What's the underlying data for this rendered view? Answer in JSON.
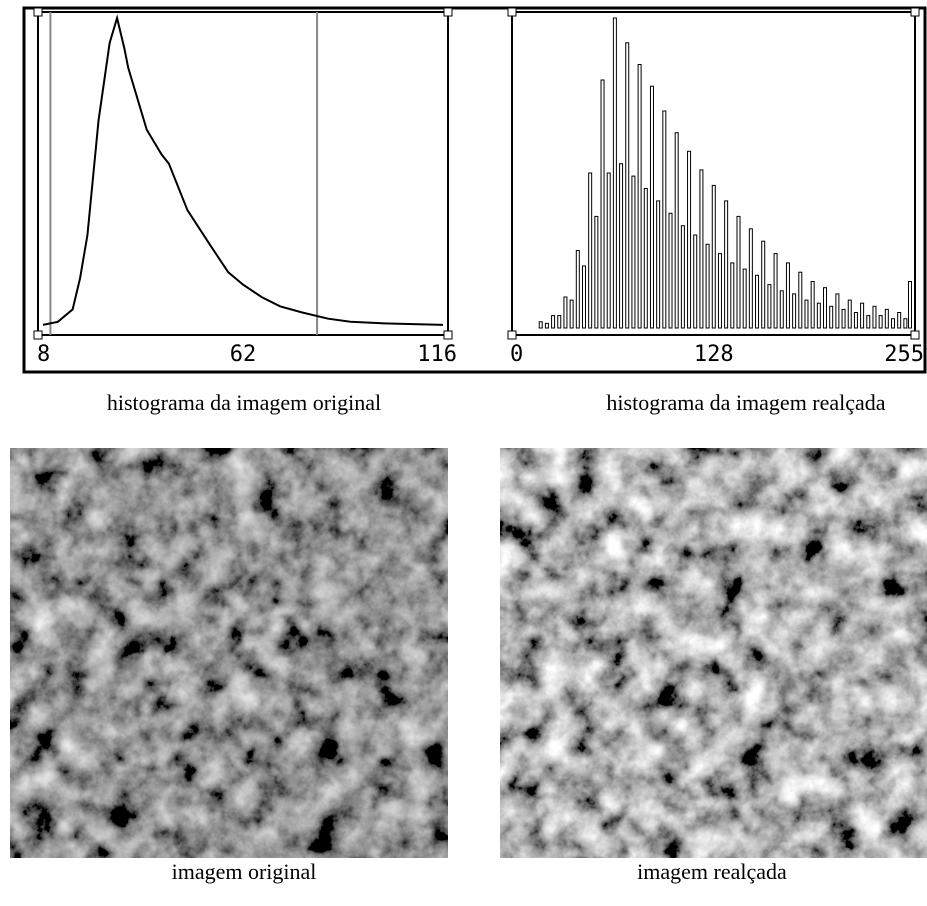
{
  "chart_data": [
    {
      "type": "line",
      "caption": "histograma da imagem original",
      "color": "#000000",
      "x": [
        8,
        12,
        16,
        18,
        20,
        23,
        26,
        28,
        30,
        31,
        34,
        36,
        40,
        42,
        47,
        53,
        58,
        62,
        67,
        72,
        78,
        85,
        91,
        100,
        116
      ],
      "values": [
        1,
        2,
        6,
        16,
        30,
        67,
        92,
        100,
        90,
        84,
        72,
        64,
        56,
        53,
        38,
        27,
        18,
        14,
        10,
        7,
        5,
        3,
        2,
        1.5,
        1
      ],
      "xlim": [
        8,
        116
      ],
      "ylim": [
        0,
        100
      ],
      "xticks": [
        8,
        62,
        116
      ],
      "vlines": [
        10,
        82
      ],
      "vline_color": "#888888"
    },
    {
      "type": "bar",
      "caption": "histograma da imagem realçada",
      "color": "#000000",
      "x": [
        16,
        20,
        24,
        28,
        32,
        36,
        40,
        44,
        48,
        52,
        56,
        60,
        64,
        68,
        72,
        76,
        80,
        84,
        88,
        92,
        96,
        100,
        104,
        108,
        112,
        116,
        120,
        124,
        128,
        132,
        136,
        140,
        144,
        148,
        152,
        156,
        160,
        164,
        168,
        172,
        176,
        180,
        184,
        188,
        192,
        196,
        200,
        204,
        208,
        212,
        216,
        220,
        224,
        228,
        232,
        236,
        240,
        244,
        248,
        252,
        255
      ],
      "values": [
        2,
        1.5,
        4,
        4,
        10,
        9,
        25,
        20,
        50,
        36,
        80,
        50,
        100,
        53,
        92,
        49,
        85,
        45,
        78,
        41,
        70,
        37,
        63,
        33,
        57,
        30,
        51,
        27,
        46,
        24,
        41,
        21,
        36,
        19,
        32,
        17,
        28,
        14,
        24,
        12,
        21,
        11,
        18,
        9,
        15,
        8,
        13,
        7,
        11,
        6,
        9,
        5,
        8,
        4,
        7,
        4,
        6,
        3,
        5,
        3,
        15
      ],
      "xlim": [
        0,
        255
      ],
      "ylim": [
        0,
        100
      ],
      "xticks": [
        0,
        128,
        255
      ]
    }
  ],
  "images": [
    {
      "caption": "imagem original"
    },
    {
      "caption": "imagem realçada"
    }
  ]
}
